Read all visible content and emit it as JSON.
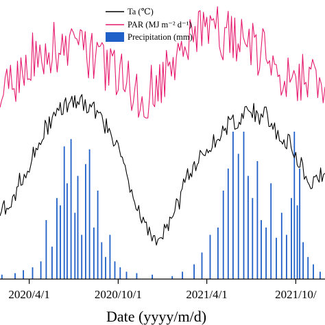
{
  "chart_data": {
    "type": "line",
    "xlabel": "Date (yyyy/m/d)",
    "x_start": "2020-02-01",
    "x_end": "2021-11-30",
    "x_ticks": [
      {
        "date": "2020-04-01",
        "label": "2020/4/1"
      },
      {
        "date": "2020-10-01",
        "label": "2020/10/1"
      },
      {
        "date": "2021-04-01",
        "label": "2021/4/1"
      },
      {
        "date": "2021-10-01",
        "label": "2021/10/"
      }
    ],
    "legend": [
      {
        "label": "Ta (℃)",
        "color": "#000000",
        "kind": "line"
      },
      {
        "label": "PAR (MJ m⁻² d⁻¹)",
        "color": "#e6196e",
        "kind": "line"
      },
      {
        "label": "Precipitation (mm)",
        "color": "#1f5fc8",
        "kind": "bar"
      }
    ],
    "series": [
      {
        "name": "Ta (℃)",
        "color": "#000000",
        "points": [
          [
            "2020-02-01",
            7
          ],
          [
            "2020-02-15",
            8
          ],
          [
            "2020-03-01",
            10
          ],
          [
            "2020-03-15",
            13
          ],
          [
            "2020-04-01",
            16
          ],
          [
            "2020-04-15",
            19
          ],
          [
            "2020-05-01",
            22
          ],
          [
            "2020-05-15",
            24
          ],
          [
            "2020-06-01",
            26
          ],
          [
            "2020-06-15",
            27
          ],
          [
            "2020-07-01",
            27
          ],
          [
            "2020-07-15",
            28
          ],
          [
            "2020-08-01",
            27
          ],
          [
            "2020-08-15",
            26
          ],
          [
            "2020-09-01",
            24
          ],
          [
            "2020-09-15",
            21
          ],
          [
            "2020-10-01",
            18
          ],
          [
            "2020-10-15",
            16
          ],
          [
            "2020-11-01",
            9
          ],
          [
            "2020-11-15",
            6
          ],
          [
            "2020-12-01",
            4
          ],
          [
            "2020-12-15",
            2
          ],
          [
            "2021-01-01",
            2
          ],
          [
            "2021-01-15",
            5
          ],
          [
            "2021-02-01",
            8
          ],
          [
            "2021-02-15",
            12
          ],
          [
            "2021-03-01",
            15
          ],
          [
            "2021-03-15",
            17
          ],
          [
            "2021-04-01",
            19
          ],
          [
            "2021-04-15",
            20
          ],
          [
            "2021-05-01",
            22
          ],
          [
            "2021-05-15",
            23
          ],
          [
            "2021-06-01",
            24
          ],
          [
            "2021-06-15",
            25
          ],
          [
            "2021-07-01",
            26
          ],
          [
            "2021-07-15",
            25
          ],
          [
            "2021-08-01",
            25
          ],
          [
            "2021-08-15",
            23
          ],
          [
            "2021-09-01",
            21
          ],
          [
            "2021-09-15",
            20
          ],
          [
            "2021-10-01",
            18
          ],
          [
            "2021-10-15",
            15
          ],
          [
            "2021-11-01",
            12
          ],
          [
            "2021-11-15",
            13
          ],
          [
            "2021-11-30",
            14
          ]
        ]
      },
      {
        "name": "PAR (MJ m⁻² d⁻¹)",
        "color": "#e6196e",
        "points": [
          [
            "2020-02-01",
            47
          ],
          [
            "2020-02-15",
            52
          ],
          [
            "2020-03-01",
            55
          ],
          [
            "2020-03-15",
            60
          ],
          [
            "2020-04-01",
            62
          ],
          [
            "2020-04-15",
            64
          ],
          [
            "2020-05-01",
            64
          ],
          [
            "2020-05-15",
            65
          ],
          [
            "2020-06-01",
            65
          ],
          [
            "2020-06-15",
            65
          ],
          [
            "2020-07-01",
            64
          ],
          [
            "2020-07-15",
            64
          ],
          [
            "2020-08-01",
            63
          ],
          [
            "2020-08-15",
            62
          ],
          [
            "2020-09-01",
            60
          ],
          [
            "2020-09-15",
            58
          ],
          [
            "2020-10-01",
            57
          ],
          [
            "2020-10-15",
            55
          ],
          [
            "2020-11-01",
            53
          ],
          [
            "2020-11-15",
            51
          ],
          [
            "2020-12-01",
            51
          ],
          [
            "2020-12-15",
            53
          ],
          [
            "2021-01-01",
            55
          ],
          [
            "2021-01-15",
            58
          ],
          [
            "2021-02-01",
            61
          ],
          [
            "2021-02-15",
            65
          ],
          [
            "2021-03-01",
            68
          ],
          [
            "2021-03-15",
            70
          ],
          [
            "2021-04-01",
            71
          ],
          [
            "2021-04-15",
            70
          ],
          [
            "2021-05-01",
            69
          ],
          [
            "2021-05-15",
            68
          ],
          [
            "2021-06-01",
            67
          ],
          [
            "2021-06-15",
            66
          ],
          [
            "2021-07-01",
            65
          ],
          [
            "2021-07-15",
            64
          ],
          [
            "2021-08-01",
            62
          ],
          [
            "2021-08-15",
            60
          ],
          [
            "2021-09-01",
            58
          ],
          [
            "2021-09-15",
            57
          ],
          [
            "2021-10-01",
            56
          ],
          [
            "2021-10-15",
            55
          ],
          [
            "2021-11-01",
            54
          ],
          [
            "2021-11-15",
            54
          ],
          [
            "2021-11-30",
            53
          ]
        ]
      }
    ],
    "precipitation": {
      "name": "Precipitation (mm)",
      "color": "#1f5fc8",
      "bars": [
        [
          "2020-02-05",
          3
        ],
        [
          "2020-03-03",
          4
        ],
        [
          "2020-03-20",
          6
        ],
        [
          "2020-04-08",
          8
        ],
        [
          "2020-04-25",
          12
        ],
        [
          "2020-05-06",
          40
        ],
        [
          "2020-05-18",
          22
        ],
        [
          "2020-05-28",
          55
        ],
        [
          "2020-06-04",
          50
        ],
        [
          "2020-06-12",
          90
        ],
        [
          "2020-06-18",
          65
        ],
        [
          "2020-06-26",
          95
        ],
        [
          "2020-07-04",
          45
        ],
        [
          "2020-07-10",
          70
        ],
        [
          "2020-07-18",
          30
        ],
        [
          "2020-07-26",
          78
        ],
        [
          "2020-08-03",
          88
        ],
        [
          "2020-08-12",
          35
        ],
        [
          "2020-08-20",
          60
        ],
        [
          "2020-08-28",
          25
        ],
        [
          "2020-09-05",
          15
        ],
        [
          "2020-09-14",
          30
        ],
        [
          "2020-09-24",
          12
        ],
        [
          "2020-10-05",
          8
        ],
        [
          "2020-10-18",
          5
        ],
        [
          "2020-11-08",
          4
        ],
        [
          "2020-12-10",
          3
        ],
        [
          "2021-01-20",
          2
        ],
        [
          "2021-02-10",
          5
        ],
        [
          "2021-03-06",
          10
        ],
        [
          "2021-03-22",
          18
        ],
        [
          "2021-04-08",
          30
        ],
        [
          "2021-04-24",
          35
        ],
        [
          "2021-05-05",
          60
        ],
        [
          "2021-05-15",
          75
        ],
        [
          "2021-05-25",
          100
        ],
        [
          "2021-06-05",
          85
        ],
        [
          "2021-06-16",
          100
        ],
        [
          "2021-06-25",
          70
        ],
        [
          "2021-07-04",
          55
        ],
        [
          "2021-07-14",
          80
        ],
        [
          "2021-07-22",
          40
        ],
        [
          "2021-08-01",
          35
        ],
        [
          "2021-08-11",
          65
        ],
        [
          "2021-08-22",
          28
        ],
        [
          "2021-09-02",
          45
        ],
        [
          "2021-09-12",
          30
        ],
        [
          "2021-09-22",
          55
        ],
        [
          "2021-09-28",
          100
        ],
        [
          "2021-10-04",
          50
        ],
        [
          "2021-10-09",
          75
        ],
        [
          "2021-10-16",
          25
        ],
        [
          "2021-10-26",
          15
        ],
        [
          "2021-11-06",
          10
        ],
        [
          "2021-11-20",
          5
        ]
      ]
    },
    "grid": false,
    "legend_position": "top-center"
  }
}
